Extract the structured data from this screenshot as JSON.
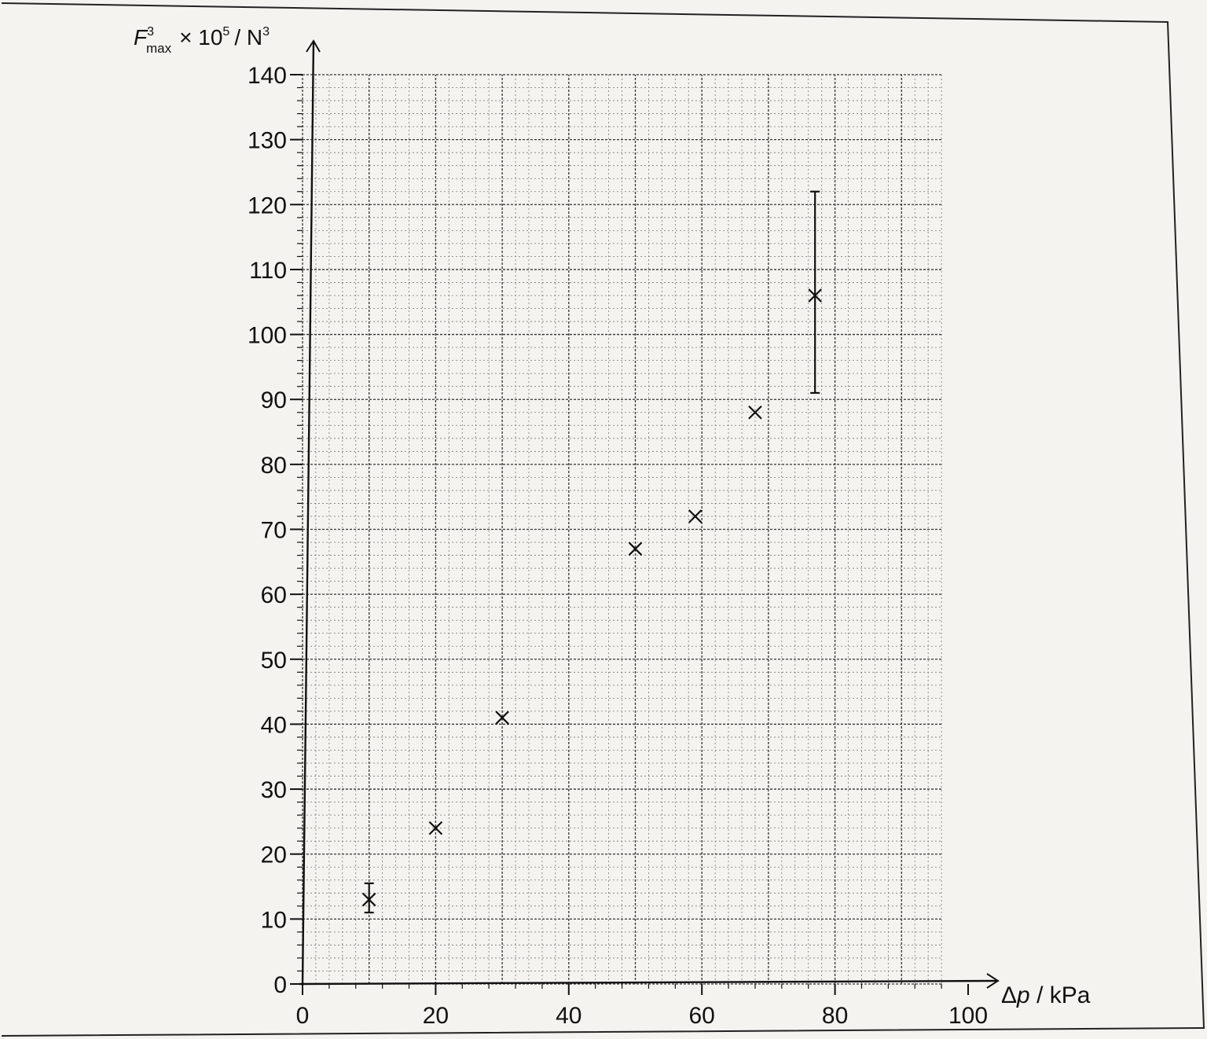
{
  "chart_data": {
    "type": "scatter",
    "title": "",
    "xlabel": "Δp / kPa",
    "ylabel": "F³max × 10⁵ / N³",
    "ylabel_parts": {
      "symbol": "F",
      "superscript": "3",
      "subscript": "max",
      "rest": "× 10",
      "exp": "5",
      "unit": "/ N",
      "unit_exp": "3"
    },
    "xlabel_parts": {
      "delta": "Δ",
      "symbol": "p",
      "unit": " / kPa"
    },
    "xlim": [
      0,
      100
    ],
    "ylim": [
      0,
      140
    ],
    "x_ticks": [
      "0",
      "20",
      "40",
      "60",
      "80",
      "100"
    ],
    "y_ticks": [
      "0",
      "10",
      "20",
      "30",
      "40",
      "50",
      "60",
      "70",
      "80",
      "90",
      "100",
      "110",
      "120",
      "130",
      "140"
    ],
    "grid": true,
    "marker": "×",
    "points": [
      {
        "x": 10,
        "y": 13,
        "err_low": 11,
        "err_high": 15.5
      },
      {
        "x": 20,
        "y": 24
      },
      {
        "x": 30,
        "y": 41
      },
      {
        "x": 50,
        "y": 67
      },
      {
        "x": 59,
        "y": 72
      },
      {
        "x": 68,
        "y": 88
      },
      {
        "x": 77,
        "y": 106,
        "err_low": 91,
        "err_high": 122
      }
    ]
  }
}
